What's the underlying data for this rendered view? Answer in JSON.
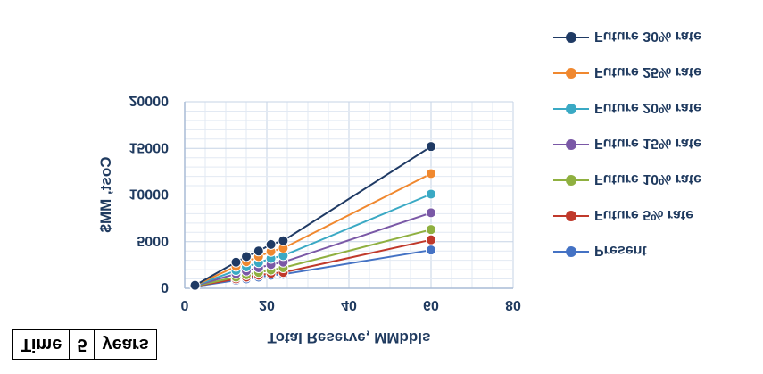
{
  "chart_data": {
    "type": "line",
    "xlabel": "Total Reserve, MMbbls",
    "ylabel": "Cost, MM$",
    "xlim": [
      0,
      80
    ],
    "ylim": [
      0,
      20000
    ],
    "x_ticks": [
      "0",
      "20",
      "40",
      "60",
      "80"
    ],
    "y_ticks": [
      "0",
      "5000",
      "10000",
      "15000",
      "20000"
    ],
    "y_axis_reversed": true,
    "grid": true,
    "legend_position": "right",
    "x": [
      2.5,
      12.5,
      15,
      18,
      21,
      24,
      60
    ],
    "series": [
      {
        "name": "Present",
        "color": "#4472c4",
        "values": [
          200,
          850,
          1000,
          1200,
          1400,
          1500,
          4100
        ]
      },
      {
        "name": "Future 5% rate",
        "color": "#c0392b",
        "values": [
          220,
          1000,
          1200,
          1400,
          1600,
          1700,
          5200
        ]
      },
      {
        "name": "Future 10% rate",
        "color": "#8fb040",
        "values": [
          240,
          1200,
          1450,
          1700,
          1950,
          2200,
          6300
        ]
      },
      {
        "name": "Future 15% rate",
        "color": "#7a58a6",
        "values": [
          260,
          1550,
          1850,
          2200,
          2550,
          2800,
          8100
        ]
      },
      {
        "name": "Future 20% rate",
        "color": "#3aa9c4",
        "values": [
          280,
          1900,
          2300,
          2750,
          3200,
          3500,
          10100
        ]
      },
      {
        "name": "Future 25% rate",
        "color": "#f0882f",
        "values": [
          300,
          2350,
          2850,
          3400,
          3950,
          4300,
          12300
        ]
      },
      {
        "name": "Future 30% rate",
        "color": "#1f3a64",
        "values": [
          320,
          2800,
          3400,
          4000,
          4700,
          5100,
          15200
        ]
      }
    ]
  },
  "table": {
    "cells": [
      "Time",
      "5",
      "years"
    ]
  }
}
